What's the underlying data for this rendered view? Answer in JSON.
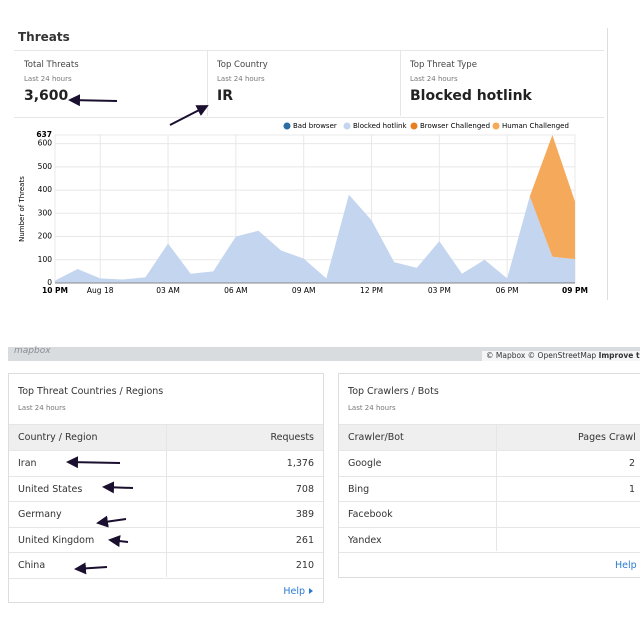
{
  "header": {
    "title": "Threats"
  },
  "stats": [
    {
      "label": "Total Threats",
      "period": "Last 24 hours",
      "value": "3,600"
    },
    {
      "label": "Top Country",
      "period": "Last 24 hours",
      "value": "IR"
    },
    {
      "label": "Top Threat Type",
      "period": "Last 24 hours",
      "value": "Blocked hotlink"
    }
  ],
  "chart_data": {
    "type": "area",
    "stacked": true,
    "ylabel": "Number of Threats",
    "categories": [
      "10 PM",
      null,
      "Aug 18",
      null,
      null,
      "03 AM",
      null,
      null,
      "06 AM",
      null,
      null,
      "09 AM",
      null,
      null,
      "12 PM",
      null,
      null,
      "03 PM",
      null,
      null,
      "06 PM",
      null,
      null,
      "09 PM"
    ],
    "series": [
      {
        "name": "Bad browser",
        "color": "#2b6ca3",
        "values": [
          0,
          0,
          0,
          0,
          0,
          0,
          0,
          0,
          0,
          0,
          0,
          0,
          0,
          0,
          0,
          0,
          0,
          0,
          0,
          0,
          0,
          3,
          3,
          3
        ]
      },
      {
        "name": "Blocked hotlink",
        "color": "#c3d5ef",
        "values": [
          10,
          60,
          20,
          15,
          25,
          170,
          40,
          50,
          200,
          225,
          140,
          105,
          20,
          380,
          270,
          90,
          65,
          180,
          40,
          100,
          20,
          370,
          110,
          100
        ]
      },
      {
        "name": "Browser Challenged",
        "color": "#e67e22",
        "values": [
          0,
          0,
          0,
          0,
          0,
          0,
          0,
          0,
          0,
          0,
          0,
          0,
          0,
          0,
          0,
          0,
          0,
          0,
          0,
          0,
          0,
          0,
          0,
          0
        ]
      },
      {
        "name": "Human Challenged",
        "color": "#f5a95a",
        "values": [
          0,
          0,
          0,
          0,
          0,
          0,
          0,
          0,
          0,
          0,
          0,
          0,
          0,
          0,
          0,
          0,
          0,
          0,
          0,
          0,
          0,
          0,
          524,
          247
        ]
      }
    ],
    "ylim": [
      0,
      637
    ],
    "yticks": [
      0,
      100,
      200,
      300,
      400,
      500,
      600,
      637
    ],
    "grid": true,
    "legend": "top-right"
  },
  "map": {
    "logo": "mapbox",
    "attribution": "© Mapbox © OpenStreetMap",
    "link": "Improve this"
  },
  "tables": [
    {
      "title": "Top Threat Countries / Regions",
      "period": "Last 24 hours",
      "columns": [
        "Country / Region",
        "Requests"
      ],
      "rows": [
        [
          "Iran",
          "1,376"
        ],
        [
          "United States",
          "708"
        ],
        [
          "Germany",
          "389"
        ],
        [
          "United Kingdom",
          "261"
        ],
        [
          "China",
          "210"
        ]
      ],
      "link": "Help"
    },
    {
      "title": "Top Crawlers / Bots",
      "period": "Last 24 hours",
      "columns": [
        "Crawler/Bot",
        "Pages Crawl"
      ],
      "rows": [
        [
          "Google",
          "2"
        ],
        [
          "Bing",
          "1"
        ],
        [
          "Facebook"
        ],
        [
          "Yandex"
        ]
      ],
      "link": "Help"
    }
  ]
}
